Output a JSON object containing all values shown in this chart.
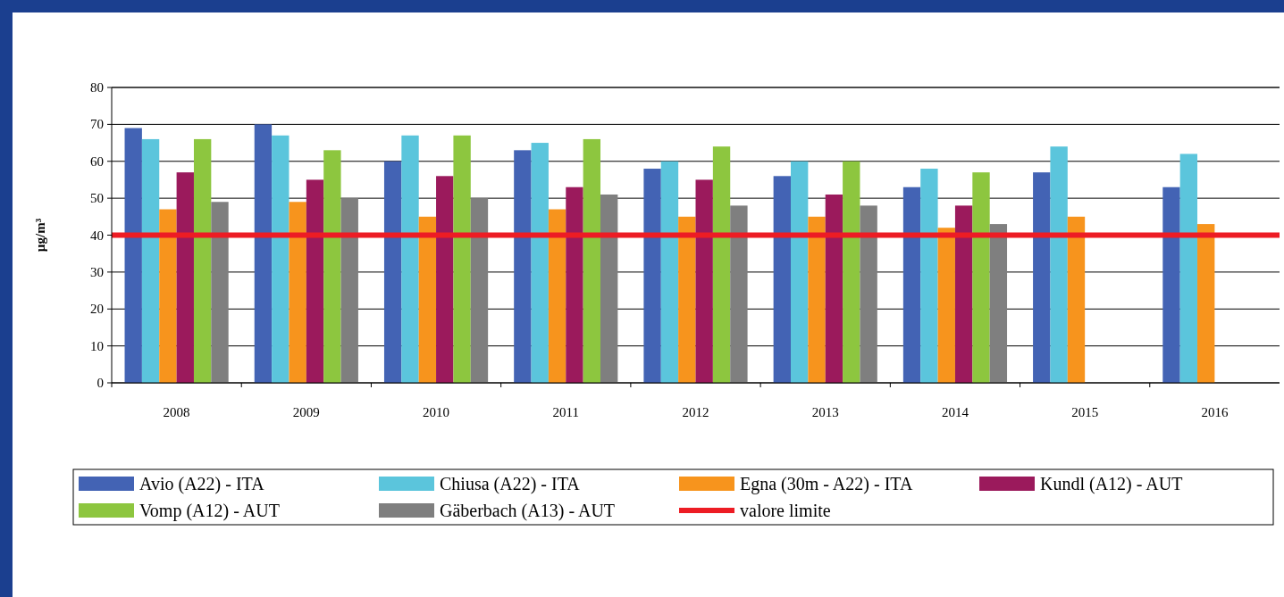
{
  "chart_data": {
    "type": "bar",
    "ylabel": "µg/m³",
    "categories": [
      "2008",
      "2009",
      "2010",
      "2011",
      "2012",
      "2013",
      "2014",
      "2015",
      "2016"
    ],
    "series": [
      {
        "name": "Avio (A22) - ITA",
        "color": "#4363b4",
        "values": [
          69,
          70,
          60,
          63,
          58,
          56,
          53,
          57,
          53
        ]
      },
      {
        "name": "Chiusa (A22) - ITA",
        "color": "#5bc5dc",
        "values": [
          66,
          67,
          67,
          65,
          60,
          60,
          58,
          64,
          62
        ]
      },
      {
        "name": "Egna (30m - A22) - ITA",
        "color": "#f7941d",
        "values": [
          47,
          49,
          45,
          47,
          45,
          45,
          42,
          45,
          43
        ]
      },
      {
        "name": "Kundl (A12) - AUT",
        "color": "#9b1a5c",
        "values": [
          57,
          55,
          56,
          53,
          55,
          51,
          48,
          null,
          null
        ]
      },
      {
        "name": "Vomp (A12) - AUT",
        "color": "#8dc63f",
        "values": [
          66,
          63,
          67,
          66,
          64,
          60,
          57,
          null,
          null
        ]
      },
      {
        "name": "Gäberbach (A13) - AUT",
        "color": "#7f7f7f",
        "values": [
          49,
          50,
          50,
          51,
          48,
          48,
          43,
          null,
          null
        ]
      }
    ],
    "ylim": [
      0,
      80
    ],
    "yticks": [
      0,
      10,
      20,
      30,
      40,
      50,
      60,
      70,
      80
    ],
    "grid": "y",
    "legend": "bottom",
    "ref_lines": [
      {
        "axis": "y",
        "value": 40,
        "label": "valore limite",
        "color": "#ed1c24"
      }
    ]
  }
}
